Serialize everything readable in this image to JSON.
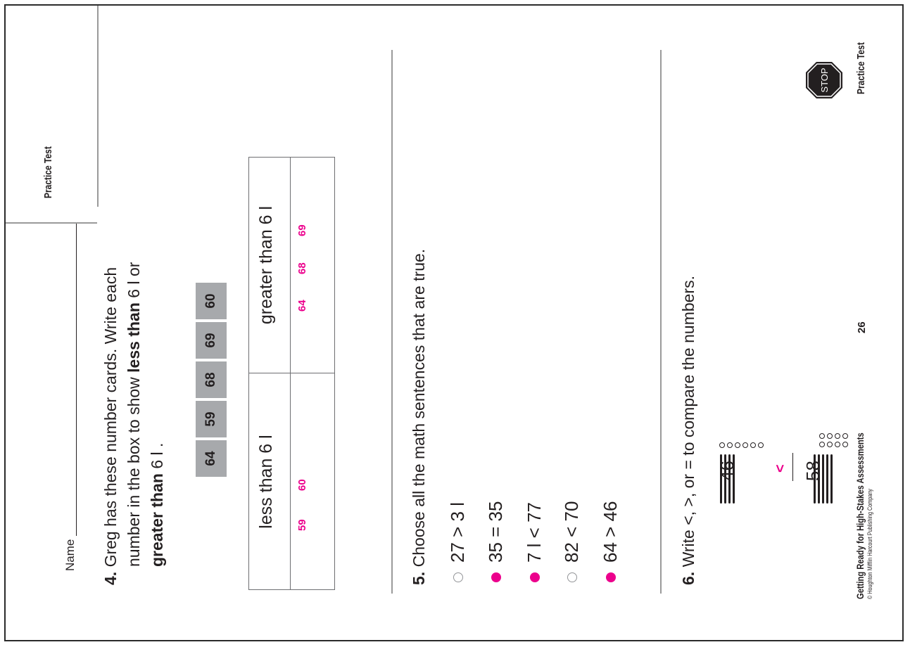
{
  "header": {
    "name_label": "Name",
    "practice_test_label": "Practice Test"
  },
  "q4": {
    "number": "4.",
    "line1": "Greg has these number cards. Write each",
    "line2_prefix": "number in the box to show ",
    "line2_bold": "less than",
    "line2_mid": " 6 l or",
    "line3_bold": "greater than",
    "line3_suffix": " 6 l .",
    "cards": [
      "64",
      "59",
      "68",
      "69",
      "60"
    ],
    "table": {
      "col1_header": "less than 6 l",
      "col2_header": "greater than 6 l",
      "col1_answers": [
        "59",
        "60"
      ],
      "col2_answers": [
        "64",
        "68",
        "69"
      ]
    }
  },
  "q5": {
    "number": "5.",
    "prompt": "Choose all the math sentences that are true.",
    "options": [
      {
        "text": "27 > 3 l",
        "selected": false
      },
      {
        "text": "35 = 35",
        "selected": true
      },
      {
        "text": "7 l < 77",
        "selected": true
      },
      {
        "text": "82 < 70",
        "selected": false
      },
      {
        "text": "64 > 46",
        "selected": true
      }
    ]
  },
  "q6": {
    "number": "6.",
    "prompt": "Write <, >, or = to compare the numbers.",
    "left_number": "46",
    "right_number": "58",
    "answer": "<",
    "left_tens": 4,
    "left_ones": 6,
    "right_tens": 5,
    "right_ones": 8
  },
  "footer": {
    "book_title": "Getting Ready for High-Stakes Assessments",
    "copyright": "© Houghton Mifflin Harcourt Publishing Company",
    "page_number": "26",
    "practice_test_label": "Practice Test",
    "stop_label": "STOP"
  },
  "colors": {
    "answer": "#ec008c",
    "card_bg": "#a7a9ac",
    "rule": "#9a9a9a"
  }
}
